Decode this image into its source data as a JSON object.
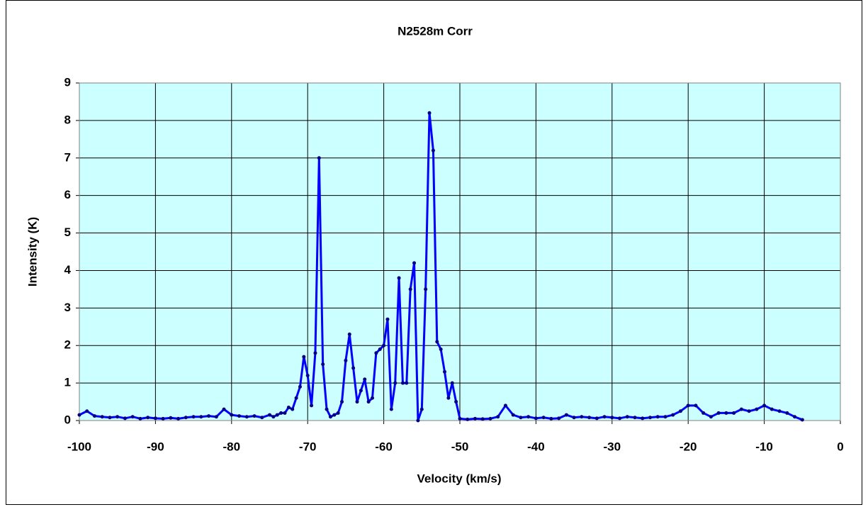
{
  "chart_data": {
    "type": "line",
    "title": "N2528m  Corr",
    "x_label": "Velocity (km/s)",
    "y_label": "Intensity (K)",
    "xlim": [
      -100,
      0
    ],
    "ylim": [
      0,
      9
    ],
    "xticks": [
      -100,
      -90,
      -80,
      -70,
      -60,
      -50,
      -40,
      -30,
      -20,
      -10,
      0
    ],
    "yticks": [
      0,
      1,
      2,
      3,
      4,
      5,
      6,
      7,
      8,
      9
    ],
    "grid": true,
    "background": "#ccffff",
    "x": [
      -100,
      -99,
      -98,
      -97,
      -96,
      -95,
      -94,
      -93,
      -92,
      -91,
      -90,
      -89,
      -88,
      -87,
      -86,
      -85,
      -84,
      -83,
      -82,
      -81,
      -80,
      -79,
      -78,
      -77,
      -76,
      -75,
      -74.5,
      -74,
      -73.5,
      -73,
      -72.5,
      -72,
      -71.5,
      -71,
      -70.5,
      -70,
      -69.5,
      -69,
      -68.5,
      -68,
      -67.5,
      -67,
      -66.5,
      -66,
      -65.5,
      -65,
      -64.5,
      -64,
      -63.5,
      -63,
      -62.5,
      -62,
      -61.5,
      -61,
      -60.5,
      -60,
      -59.5,
      -59,
      -58.5,
      -58,
      -57.5,
      -57,
      -56.5,
      -56,
      -55.5,
      -55,
      -54.5,
      -54,
      -53.5,
      -53,
      -52.5,
      -52,
      -51.5,
      -51,
      -50.5,
      -50,
      -49,
      -48,
      -47,
      -46,
      -45,
      -44,
      -43,
      -42,
      -41,
      -40,
      -39,
      -38,
      -37,
      -36,
      -35,
      -34,
      -33,
      -32,
      -31,
      -30,
      -29,
      -28,
      -27,
      -26,
      -25,
      -24,
      -23,
      -22,
      -21,
      -20,
      -19,
      -18,
      -17,
      -16,
      -15,
      -14,
      -13,
      -12,
      -11,
      -10,
      -9,
      -8,
      -7,
      -6,
      -5
    ],
    "series": [
      {
        "color": "#0000ff",
        "marker_color": "#000080",
        "values": [
          0.15,
          0.25,
          0.12,
          0.1,
          0.08,
          0.1,
          0.06,
          0.1,
          0.05,
          0.08,
          0.06,
          0.05,
          0.07,
          0.05,
          0.08,
          0.1,
          0.1,
          0.12,
          0.1,
          0.3,
          0.15,
          0.12,
          0.1,
          0.12,
          0.08,
          0.15,
          0.1,
          0.15,
          0.2,
          0.2,
          0.35,
          0.3,
          0.6,
          0.9,
          1.7,
          1.2,
          0.4,
          1.8,
          7.0,
          1.5,
          0.3,
          0.1,
          0.15,
          0.2,
          0.5,
          1.6,
          2.3,
          1.4,
          0.5,
          0.8,
          1.1,
          0.5,
          0.6,
          1.8,
          1.9,
          2.0,
          2.7,
          0.3,
          1.0,
          3.8,
          1.0,
          1.0,
          3.5,
          4.2,
          0.0,
          0.3,
          3.5,
          8.2,
          7.2,
          2.1,
          1.9,
          1.3,
          0.6,
          1.0,
          0.5,
          0.05,
          0.03,
          0.05,
          0.04,
          0.05,
          0.1,
          0.4,
          0.15,
          0.08,
          0.1,
          0.06,
          0.08,
          0.05,
          0.06,
          0.15,
          0.08,
          0.1,
          0.08,
          0.06,
          0.1,
          0.08,
          0.06,
          0.1,
          0.08,
          0.06,
          0.08,
          0.1,
          0.1,
          0.15,
          0.25,
          0.4,
          0.4,
          0.2,
          0.1,
          0.2,
          0.2,
          0.2,
          0.3,
          0.25,
          0.3,
          0.4,
          0.3,
          0.25,
          0.2,
          0.1,
          0.02
        ]
      }
    ]
  }
}
